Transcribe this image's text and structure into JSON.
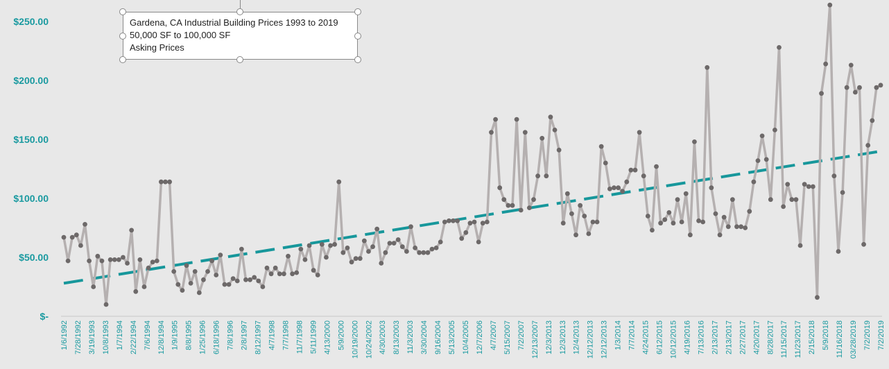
{
  "chart_data": {
    "type": "line",
    "title_lines": [
      "Gardena, CA Industrial Building Prices 1993 to 2019",
      "50,000 SF to 100,000 SF",
      "Asking Prices"
    ],
    "y_ticks": [
      "$-",
      "$50.00",
      "$100.00",
      "$150.00",
      "$200.00",
      "$250.00"
    ],
    "ylim": [
      0,
      265
    ],
    "x_tick_labels": [
      "1/6/1992",
      "7/28/1992",
      "3/19/1993",
      "10/8/1993",
      "1/7/1994",
      "2/22/1994",
      "7/6/1994",
      "12/8/1994",
      "1/9/1995",
      "8/8/1995",
      "1/25/1996",
      "6/18/1996",
      "7/8/1996",
      "2/8/1997",
      "8/12/1997",
      "4/7/1998",
      "7/7/1998",
      "11/7/1998",
      "5/11/1999",
      "4/13/2000",
      "5/9/2000",
      "10/19/2000",
      "10/24/2002",
      "4/30/2003",
      "8/13/2003",
      "11/3/2003",
      "3/30/2004",
      "9/16/2004",
      "5/13/2005",
      "10/4/2005",
      "12/7/2006",
      "4/7/2007",
      "5/15/2007",
      "7/2/2007",
      "12/13/2007",
      "12/3/2013",
      "12/3/2013",
      "12/4/2013",
      "12/12/2013",
      "12/12/2013",
      "1/3/2014",
      "7/7/2014",
      "4/24/2015",
      "6/12/2015",
      "10/12/2015",
      "4/19/2016",
      "7/13/2016",
      "2/13/2017",
      "2/13/2017",
      "2/27/2017",
      "4/20/2017",
      "8/28/2017",
      "11/15/2017",
      "11/23/2017",
      "2/15/2018",
      "5/9/2018",
      "11/16/2018",
      "03/28/2019",
      "7/2/2019",
      "7/2/2019"
    ],
    "values": [
      67,
      47,
      67,
      69,
      60,
      78,
      47,
      25,
      51,
      47,
      10,
      48,
      48,
      48,
      50,
      45,
      73,
      21,
      48,
      25,
      41,
      46,
      47,
      114,
      114,
      114,
      38,
      27,
      22,
      43,
      28,
      38,
      20,
      31,
      38,
      47,
      35,
      52,
      27,
      27,
      32,
      30,
      57,
      31,
      31,
      33,
      30,
      25,
      41,
      36,
      41,
      36,
      36,
      51,
      36,
      37,
      57,
      48,
      60,
      39,
      35,
      61,
      50,
      60,
      61,
      114,
      54,
      58,
      46,
      49,
      49,
      64,
      55,
      59,
      74,
      45,
      54,
      62,
      62,
      65,
      59,
      55,
      76,
      58,
      54,
      54,
      54,
      57,
      58,
      63,
      80,
      81,
      81,
      81,
      66,
      71,
      79,
      80,
      63,
      79,
      80,
      156,
      167,
      109,
      99,
      94,
      94,
      167,
      90,
      156,
      92,
      99,
      119,
      151,
      119,
      169,
      158,
      141,
      79,
      104,
      87,
      69,
      94,
      85,
      70,
      80,
      80,
      144,
      130,
      108,
      109,
      109,
      106,
      114,
      124,
      124,
      156,
      119,
      85,
      73,
      127,
      79,
      82,
      88,
      79,
      99,
      80,
      104,
      69,
      148,
      81,
      80,
      211,
      109,
      87,
      69,
      84,
      76,
      99,
      76,
      76,
      75,
      89,
      114,
      132,
      153,
      133,
      99,
      158,
      228,
      93,
      112,
      99,
      99,
      60,
      112,
      110,
      110,
      16,
      189,
      214,
      264,
      119,
      55,
      105,
      194,
      213,
      190,
      194,
      61,
      145,
      166,
      194,
      196
    ],
    "trendline": {
      "style": "dashed linear trend",
      "start": 28,
      "end": 140,
      "color": "#17979b"
    },
    "series_color": "#b5b0b0",
    "marker_color": "#6d6969",
    "axis_label_color": "#1a9aa0",
    "grid": false,
    "legend": "none"
  }
}
